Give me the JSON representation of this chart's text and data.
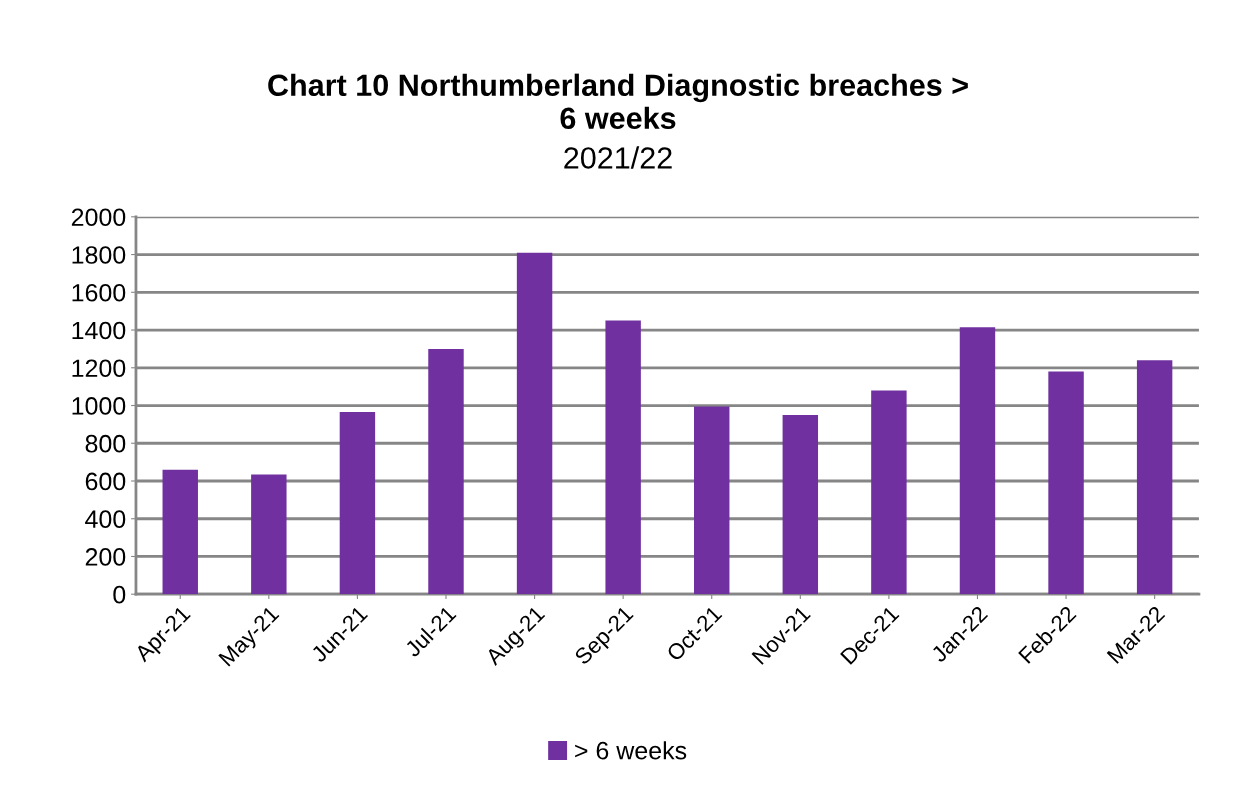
{
  "chart_data": {
    "type": "bar",
    "title": "Chart 10 Northumberland Diagnostic breaches >\n6 weeks",
    "subtitle": "2021/22",
    "categories": [
      "Apr-21",
      "May-21",
      "Jun-21",
      "Jul-21",
      "Aug-21",
      "Sep-21",
      "Oct-21",
      "Nov-21",
      "Dec-21",
      "Jan-22",
      "Feb-22",
      "Mar-22"
    ],
    "series": [
      {
        "name": "> 6 weeks",
        "color": "#7030a0",
        "values": [
          660,
          635,
          965,
          1300,
          1810,
          1450,
          995,
          950,
          1080,
          1415,
          1180,
          1240
        ]
      }
    ],
    "ylim": [
      0,
      2000
    ],
    "yticks": [
      0,
      200,
      400,
      600,
      800,
      1000,
      1200,
      1400,
      1600,
      1800,
      2000
    ],
    "grid": "y",
    "legend": "bottom"
  }
}
